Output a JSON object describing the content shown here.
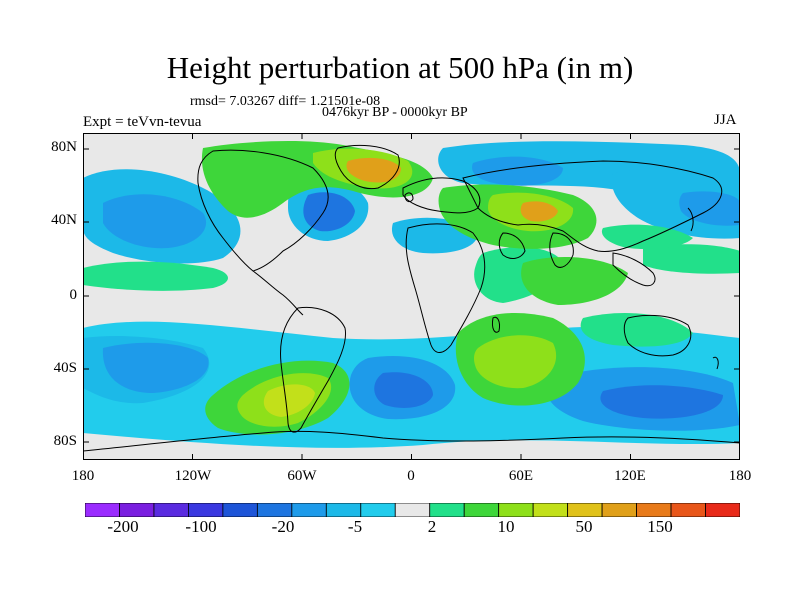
{
  "title": "Height perturbation at 500 hPa (in m)",
  "stats_line": "rmsd= 7.03267 diff= 1.21501e-08",
  "period_line": "0476kyr BP - 0000kyr BP",
  "experiment": "Expt = teVvn-tevua",
  "season": "JJA",
  "axes": {
    "y_ticks": [
      "80N",
      "40N",
      "0",
      "40S",
      "80S"
    ],
    "x_ticks": [
      "180",
      "120W",
      "60W",
      "0",
      "60E",
      "120E",
      "180"
    ]
  },
  "colorbar": {
    "labels": [
      "-200",
      "-100",
      "-20",
      "-5",
      "2",
      "10",
      "50",
      "150"
    ],
    "colors": [
      "#9b2cff",
      "#7a1fe0",
      "#5a2be0",
      "#3a38e0",
      "#1e55d8",
      "#1e75e0",
      "#1e9bea",
      "#1cb9e8",
      "#22ccec",
      "#e8e8e8",
      "#22e08a",
      "#3ed63a",
      "#8ee01a",
      "#c2e01a",
      "#e0c21a",
      "#e0a01a",
      "#e87a1a",
      "#e8561a",
      "#e82a1a"
    ]
  },
  "colors": {
    "neutral": "#e8e8e8",
    "light_blue": "#22ccec",
    "cyan": "#1cb9e8",
    "mid_blue": "#1e9bea",
    "blue": "#1e75e0",
    "teal": "#22e08a",
    "green": "#3ed63a",
    "yellow_green": "#8ee01a",
    "yellow": "#c2e01a",
    "orange": "#e0a01a"
  }
}
